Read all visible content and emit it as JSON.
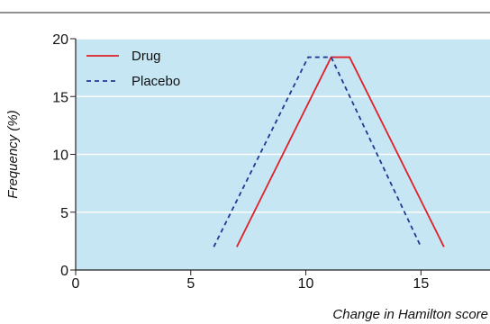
{
  "chart_data": {
    "type": "line",
    "title": "",
    "xlabel": "Change in Hamilton score",
    "ylabel": "Frequency (%)",
    "xlim": [
      0,
      18
    ],
    "ylim": [
      0,
      20
    ],
    "xticks": [
      0,
      5,
      10,
      15
    ],
    "yticks": [
      0,
      5,
      10,
      15,
      20
    ],
    "grid": "horizontal",
    "legend_position": "top-left",
    "plot_background": "#c6e6f4",
    "series": [
      {
        "name": "Drug",
        "color": "#e0202a",
        "style": "solid",
        "points": [
          [
            7,
            2
          ],
          [
            11.1,
            18.4
          ],
          [
            11.9,
            18.4
          ],
          [
            16,
            2
          ]
        ]
      },
      {
        "name": "Placebo",
        "color": "#1f3a93",
        "style": "dashed",
        "points": [
          [
            6,
            2
          ],
          [
            10.1,
            18.4
          ],
          [
            11.1,
            18.4
          ],
          [
            15,
            2
          ]
        ]
      }
    ]
  }
}
